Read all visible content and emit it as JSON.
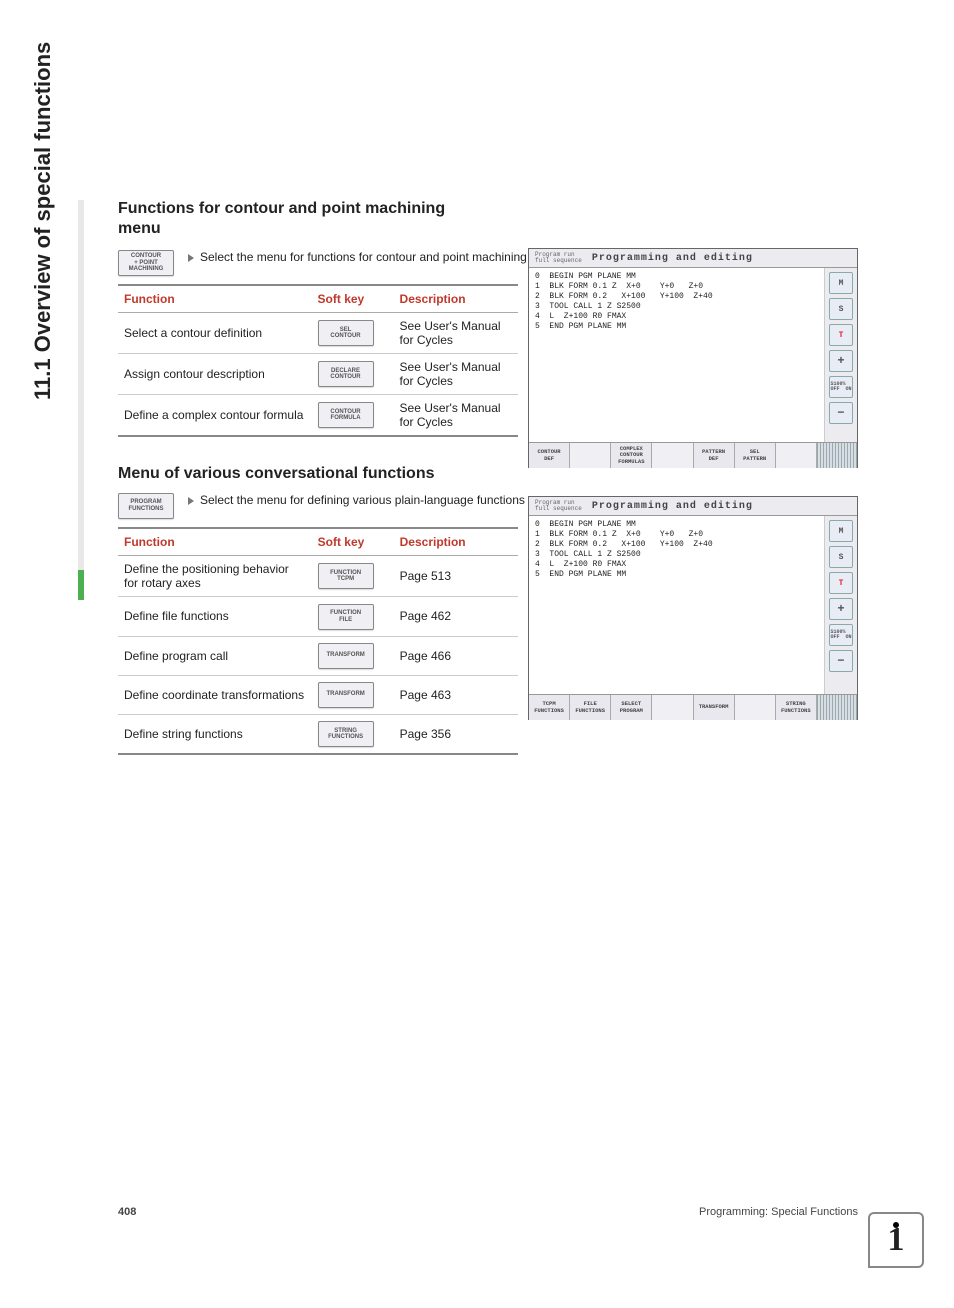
{
  "side_title": "11.1 Overview of special functions",
  "section1": {
    "heading": "Functions for contour and point machining",
    "subheading": "menu",
    "leadkey": [
      "CONTOUR",
      "+ POINT",
      "MACHINING"
    ],
    "leadtext": "Select the menu for functions for contour and point machining",
    "table": {
      "headers": [
        "Function",
        "Soft key",
        "Description"
      ],
      "rows": [
        {
          "func": "Select a contour definition",
          "key": [
            "SEL",
            "CONTOUR"
          ],
          "desc": "See User's Manual for Cycles"
        },
        {
          "func": "Assign contour description",
          "key": [
            "DECLARE",
            "CONTOUR"
          ],
          "desc": "See User's Manual for Cycles"
        },
        {
          "func": "Define a complex contour formula",
          "key": [
            "CONTOUR",
            "FORMULA"
          ],
          "desc": "See User's Manual for Cycles"
        }
      ]
    }
  },
  "section2": {
    "heading": "Menu of various conversational functions",
    "leadkey": [
      "PROGRAM",
      "FUNCTIONS"
    ],
    "leadtext": "Select the menu for defining various plain-language functions",
    "table": {
      "headers": [
        "Function",
        "Soft key",
        "Description"
      ],
      "rows": [
        {
          "func": "Define the positioning behavior for rotary axes",
          "key": [
            "FUNCTION",
            "TCPM"
          ],
          "desc": "Page 513"
        },
        {
          "func": "Define file functions",
          "key": [
            "FUNCTION",
            "FILE"
          ],
          "desc": "Page 462"
        },
        {
          "func": "Define program call",
          "key": [
            "TRANSFORM"
          ],
          "desc": "Page 466"
        },
        {
          "func": "Define coordinate transformations",
          "key": [
            "TRANSFORM"
          ],
          "desc": "Page 463"
        },
        {
          "func": "Define string functions",
          "key": [
            "STRING",
            "FUNCTIONS"
          ],
          "desc": "Page 356"
        }
      ]
    }
  },
  "screenshots": {
    "mode_lines": "Program run\nfull sequence",
    "title": "Programming and editing",
    "code": "0  BEGIN PGM PLANE MM\n1  BLK FORM 0.1 Z  X+0    Y+0   Z+0\n2  BLK FORM 0.2   X+100   Y+100  Z+40\n3  TOOL CALL 1 Z S2500\n4  L  Z+100 R0 FMAX\n5  END PGM PLANE MM",
    "top_softkeys": [
      "CONTOUR\nDEF",
      "",
      "COMPLEX\nCONTOUR\nFORMULAS",
      "",
      "PATTERN\nDEF",
      "SEL\nPATTERN",
      "",
      ""
    ],
    "bot_softkeys": [
      "TCPM\nFUNCTIONS",
      "FILE\nFUNCTIONS",
      "SELECT\nPROGRAM",
      "",
      "TRANSFORM",
      "",
      "STRING\nFUNCTIONS",
      ""
    ]
  },
  "footer": {
    "page": "408",
    "right": "Programming: Special Functions"
  }
}
